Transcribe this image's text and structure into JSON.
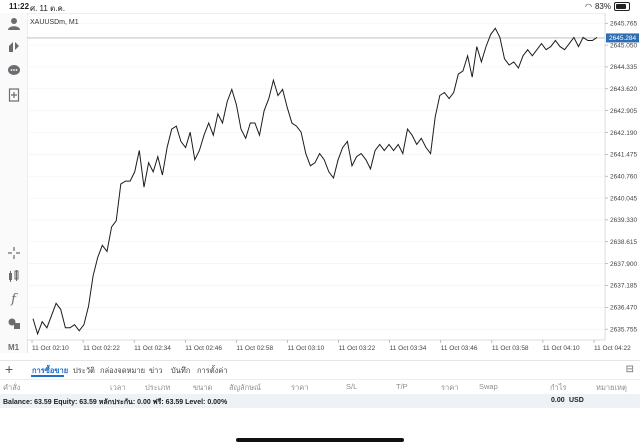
{
  "status": {
    "time": "11:22",
    "date": "ศ. 11 ต.ค.",
    "battery": "83%"
  },
  "toolbar": {
    "icons": [
      "account-icon",
      "trade-icon",
      "chat-icon",
      "new-document-icon",
      "crosshair-icon",
      "indicators-icon",
      "function-icon",
      "objects-icon",
      "timeframe-label"
    ],
    "timeframe": "M1"
  },
  "chart": {
    "symbol_label": "XAUUSDm, M1",
    "current_price": "2645.284",
    "y_ticks": [
      "2645.765",
      "2645.050",
      "2644.335",
      "2643.620",
      "2642.905",
      "2642.190",
      "2641.475",
      "2640.760",
      "2640.045",
      "2639.330",
      "2638.615",
      "2637.900",
      "2637.185",
      "2636.470",
      "2635.755"
    ],
    "x_ticks": [
      "11 Oct 02:10",
      "11 Oct 02:22",
      "11 Oct 02:34",
      "11 Oct 02:46",
      "11 Oct 02:58",
      "11 Oct 03:10",
      "11 Oct 03:22",
      "11 Oct 03:34",
      "11 Oct 03:46",
      "11 Oct 03:58",
      "11 Oct 04:10",
      "11 Oct 04:22"
    ]
  },
  "chart_data": {
    "type": "line",
    "title": "XAUUSDm, M1",
    "ylim": [
      2635.4,
      2646.1
    ],
    "current_price": 2645.284,
    "x_start_label": "11 Oct 02:10",
    "x_end_label": "11 Oct 04:22",
    "series": [
      {
        "values": [
          2636.1,
          2635.6,
          2636.0,
          2635.8,
          2636.2,
          2636.6,
          2636.4,
          2635.8,
          2635.8,
          2635.9,
          2635.7,
          2635.9,
          2636.5,
          2637.5,
          2638.1,
          2638.5,
          2638.3,
          2639.1,
          2639.3,
          2640.5,
          2640.6,
          2640.6,
          2640.9,
          2641.6,
          2640.4,
          2641.2,
          2640.9,
          2641.4,
          2640.8,
          2641.7,
          2642.3,
          2642.4,
          2641.9,
          2641.7,
          2642.2,
          2641.3,
          2641.6,
          2642.1,
          2642.5,
          2642.1,
          2642.8,
          2642.5,
          2643.2,
          2643.6,
          2643.1,
          2642.3,
          2642.0,
          2642.5,
          2642.5,
          2642.1,
          2642.9,
          2643.3,
          2643.9,
          2643.4,
          2643.6,
          2643.0,
          2642.5,
          2642.4,
          2642.2,
          2641.5,
          2641.1,
          2641.2,
          2641.5,
          2641.3,
          2640.9,
          2640.7,
          2641.3,
          2641.7,
          2641.9,
          2641.1,
          2641.4,
          2641.5,
          2641.3,
          2641.0,
          2641.6,
          2641.8,
          2641.6,
          2641.8,
          2641.6,
          2641.8,
          2641.5,
          2642.3,
          2642.1,
          2641.8,
          2642.0,
          2641.7,
          2641.5,
          2642.7,
          2643.4,
          2643.5,
          2643.3,
          2643.5,
          2644.1,
          2644.2,
          2644.7,
          2644.0,
          2645.0,
          2644.5,
          2645.0,
          2645.4,
          2645.6,
          2645.3,
          2644.6,
          2644.4,
          2644.5,
          2644.3,
          2644.7,
          2644.9,
          2644.7,
          2644.9,
          2645.1,
          2644.9,
          2645.0,
          2645.2,
          2645.0,
          2644.9,
          2645.1,
          2645.3,
          2645.0,
          2645.3,
          2645.2,
          2645.2,
          2645.3
        ]
      }
    ]
  },
  "tabs": {
    "add": "+",
    "items": [
      "การซื้อขาย",
      "ประวัติ",
      "กล่องจดหมาย",
      "ข่าว",
      "บันทึก",
      "การตั้งค่า"
    ]
  },
  "columns": [
    "คำสั่ง",
    "เวลา",
    "ประเภท",
    "ขนาด",
    "สัญลักษณ์",
    "ราคา",
    "S/L",
    "T/P",
    "ราคา",
    "Swap",
    "กำไร",
    "หมายเหตุ"
  ],
  "balance": {
    "text": "Balance: 63.59 Equity: 63.59 หลักประกัน: 0.00 ฟรี: 63.59 Level: 0.00%",
    "profit": "0.00",
    "currency": "USD"
  }
}
